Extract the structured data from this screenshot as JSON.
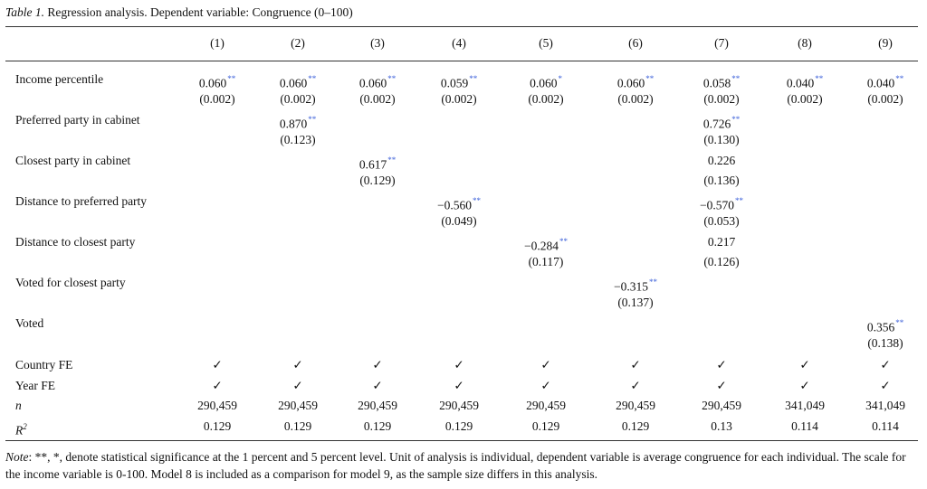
{
  "caption": {
    "label": "Table 1.",
    "text": " Regression analysis. Dependent variable: Congruence (0–100)"
  },
  "columns": [
    "(1)",
    "(2)",
    "(3)",
    "(4)",
    "(5)",
    "(6)",
    "(7)",
    "(8)",
    "(9)"
  ],
  "rows": [
    {
      "label": "Income percentile",
      "est": [
        [
          "0.060",
          "**"
        ],
        [
          "0.060",
          "**"
        ],
        [
          "0.060",
          "**"
        ],
        [
          "0.059",
          "**"
        ],
        [
          "0.060",
          "*"
        ],
        [
          "0.060",
          "**"
        ],
        [
          "0.058",
          "**"
        ],
        [
          "0.040",
          "**"
        ],
        [
          "0.040",
          "**"
        ]
      ],
      "se": [
        "(0.002)",
        "(0.002)",
        "(0.002)",
        "(0.002)",
        "(0.002)",
        "(0.002)",
        "(0.002)",
        "(0.002)",
        "(0.002)"
      ]
    },
    {
      "label": "Preferred party in cabinet",
      "est": [
        null,
        [
          "0.870",
          "**"
        ],
        null,
        null,
        null,
        null,
        [
          "0.726",
          "**"
        ],
        null,
        null
      ],
      "se": [
        null,
        "(0.123)",
        null,
        null,
        null,
        null,
        "(0.130)",
        null,
        null
      ]
    },
    {
      "label": "Closest party in cabinet",
      "est": [
        null,
        null,
        [
          "0.617",
          "**"
        ],
        null,
        null,
        null,
        [
          "0.226",
          ""
        ],
        null,
        null
      ],
      "se": [
        null,
        null,
        "(0.129)",
        null,
        null,
        null,
        "(0.136)",
        null,
        null
      ]
    },
    {
      "label": "Distance to preferred party",
      "est": [
        null,
        null,
        null,
        [
          "−0.560",
          "**"
        ],
        null,
        null,
        [
          "−0.570",
          "**"
        ],
        null,
        null
      ],
      "se": [
        null,
        null,
        null,
        "(0.049)",
        null,
        null,
        "(0.053)",
        null,
        null
      ]
    },
    {
      "label": "Distance to closest party",
      "est": [
        null,
        null,
        null,
        null,
        [
          "−0.284",
          "**"
        ],
        null,
        [
          "0.217",
          ""
        ],
        null,
        null
      ],
      "se": [
        null,
        null,
        null,
        null,
        "(0.117)",
        null,
        "(0.126)",
        null,
        null
      ]
    },
    {
      "label": "Voted for closest party",
      "est": [
        null,
        null,
        null,
        null,
        null,
        [
          "−0.315",
          "**"
        ],
        null,
        null,
        null
      ],
      "se": [
        null,
        null,
        null,
        null,
        null,
        "(0.137)",
        null,
        null,
        null
      ]
    },
    {
      "label": "Voted",
      "est": [
        null,
        null,
        null,
        null,
        null,
        null,
        null,
        null,
        [
          "0.356",
          "**"
        ]
      ],
      "se": [
        null,
        null,
        null,
        null,
        null,
        null,
        null,
        null,
        "(0.138)"
      ]
    }
  ],
  "fe_rows": [
    {
      "label": "Country FE",
      "marks": [
        "✓",
        "✓",
        "✓",
        "✓",
        "✓",
        "✓",
        "✓",
        "✓",
        "✓"
      ]
    },
    {
      "label": "Year FE",
      "marks": [
        "✓",
        "✓",
        "✓",
        "✓",
        "✓",
        "✓",
        "✓",
        "✓",
        "✓"
      ]
    }
  ],
  "stat_rows": [
    {
      "label": "n",
      "values": [
        "290,459",
        "290,459",
        "290,459",
        "290,459",
        "290,459",
        "290,459",
        "290,459",
        "341,049",
        "341,049"
      ]
    },
    {
      "label": "R",
      "sup": "2",
      "values": [
        "0.129",
        "0.129",
        "0.129",
        "0.129",
        "0.129",
        "0.129",
        "0.13",
        "0.114",
        "0.114"
      ]
    }
  ],
  "note": {
    "label": "Note",
    "text": ": **, *, denote statistical significance at the 1 percent and 5 percent level. Unit of analysis is individual, dependent variable is average congruence for each individual. The scale for the income variable is 0-100. Model 8 is included as a comparison for model 9, as the sample size differs in this analysis."
  }
}
